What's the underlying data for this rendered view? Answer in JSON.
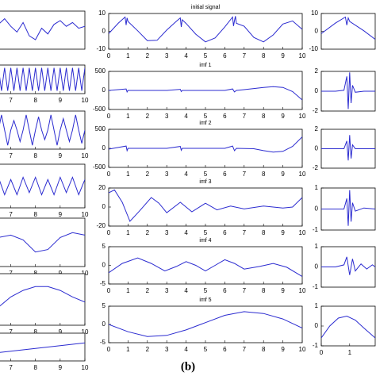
{
  "caption": "(b)",
  "chart_data": [
    {
      "type": "line",
      "title": "initial signal",
      "color": "#2b2bd0",
      "x": [
        0,
        0.5,
        0.85,
        0.9,
        0.95,
        1.0,
        1.5,
        2.0,
        2.5,
        3.0,
        3.5,
        3.7,
        3.75,
        3.8,
        4.0,
        4.5,
        5.0,
        5.5,
        6.0,
        6.4,
        6.45,
        6.5,
        6.55,
        6.6,
        7.0,
        7.5,
        8.0,
        8.5,
        9.0,
        9.5,
        10
      ],
      "values": [
        -1.3,
        4.6,
        8,
        3.5,
        7.5,
        5.5,
        0.3,
        -5.2,
        -5.0,
        0.7,
        5.7,
        7.5,
        2.5,
        6.5,
        4.4,
        -1.6,
        -5.9,
        -3.7,
        2.5,
        8,
        3,
        6.0,
        8.5,
        4.5,
        2.9,
        -3.4,
        -5.9,
        -2.0,
        4.1,
        5.8,
        1.1
      ],
      "xlim": [
        0,
        10
      ],
      "ylim": [
        -10,
        10
      ],
      "xticks": [
        0,
        1,
        2,
        3,
        4,
        5,
        6,
        7,
        8,
        9,
        10
      ],
      "yticks": [
        -10,
        0,
        10
      ]
    },
    {
      "type": "line",
      "title": "imf 1",
      "color": "#2b2bd0",
      "x": [
        0,
        0.9,
        0.95,
        1.0,
        2.0,
        3.0,
        3.7,
        3.75,
        3.8,
        5.0,
        6.0,
        6.4,
        6.5,
        6.6,
        7.0,
        7.5,
        8.0,
        8.5,
        9.0,
        9.5,
        10
      ],
      "values": [
        0,
        40,
        -40,
        0,
        0,
        0,
        30,
        -30,
        0,
        0,
        0,
        40,
        -40,
        0,
        20,
        50,
        80,
        100,
        80,
        -30,
        -250
      ],
      "xlim": [
        0,
        10
      ],
      "ylim": [
        -500,
        500
      ],
      "xticks": [
        0,
        1,
        2,
        3,
        4,
        5,
        6,
        7,
        8,
        9,
        10
      ],
      "yticks": [
        -500,
        0,
        500
      ]
    },
    {
      "type": "line",
      "title": "imf 2",
      "color": "#2b2bd0",
      "x": [
        0,
        0.9,
        0.95,
        1.0,
        2.0,
        3.0,
        3.7,
        3.75,
        3.8,
        5.0,
        6.0,
        6.4,
        6.5,
        6.6,
        7.5,
        8.0,
        8.5,
        9.0,
        9.5,
        10
      ],
      "values": [
        -20,
        60,
        -60,
        0,
        0,
        0,
        50,
        -50,
        0,
        0,
        0,
        60,
        -60,
        0,
        -10,
        -60,
        -100,
        -80,
        50,
        300
      ],
      "xlim": [
        0,
        10
      ],
      "ylim": [
        -500,
        500
      ],
      "xticks": [
        0,
        1,
        2,
        3,
        4,
        5,
        6,
        7,
        8,
        9,
        10
      ],
      "yticks": [
        -500,
        0,
        500
      ]
    },
    {
      "type": "line",
      "title": "imf 3",
      "color": "#2b2bd0",
      "x": [
        0,
        0.3,
        0.7,
        1.1,
        1.6,
        2.2,
        2.6,
        3.0,
        3.7,
        4.3,
        5.0,
        5.6,
        6.3,
        7.0,
        8.0,
        9.0,
        9.5,
        10
      ],
      "values": [
        15,
        18,
        5,
        -15,
        -4,
        10,
        4,
        -6,
        5,
        -5,
        4,
        -3,
        1,
        -2,
        1,
        -1,
        0,
        10
      ],
      "xlim": [
        0,
        10
      ],
      "ylim": [
        -20,
        20
      ],
      "xticks": [
        0,
        1,
        2,
        3,
        4,
        5,
        6,
        7,
        8,
        9,
        10
      ],
      "yticks": [
        -20,
        0,
        20
      ]
    },
    {
      "type": "line",
      "title": "imf 4",
      "color": "#2b2bd0",
      "x": [
        0,
        0.7,
        1.5,
        2.2,
        2.9,
        3.5,
        4.0,
        4.5,
        5.0,
        5.5,
        6.0,
        6.5,
        7.0,
        7.8,
        8.5,
        9.2,
        10
      ],
      "values": [
        -2,
        0.5,
        2,
        0.5,
        -1.5,
        -0.3,
        1,
        0,
        -1.5,
        0,
        1.5,
        0.5,
        -1,
        -0.3,
        0.5,
        -0.5,
        -3
      ],
      "xlim": [
        0,
        10
      ],
      "ylim": [
        -5,
        5
      ],
      "xticks": [
        0,
        1,
        2,
        3,
        4,
        5,
        6,
        7,
        8,
        9,
        10
      ],
      "yticks": [
        -5,
        0,
        5
      ]
    },
    {
      "type": "line",
      "title": "imf 5",
      "color": "#2b2bd0",
      "x": [
        0,
        1,
        2,
        3,
        4,
        5,
        6,
        7,
        8,
        9,
        10
      ],
      "values": [
        0,
        -2,
        -3.3,
        -3,
        -1.5,
        0.5,
        2.5,
        3.5,
        3,
        1.5,
        -1
      ],
      "xlim": [
        0,
        10
      ],
      "ylim": [
        -5,
        5
      ],
      "xticks": [
        0,
        1,
        2,
        3,
        4,
        5,
        6,
        7,
        8,
        9,
        10
      ],
      "yticks": [
        -5,
        0,
        5
      ]
    },
    {
      "type": "line",
      "color": "#2b2bd0",
      "x": [
        6.5,
        6.75,
        7,
        7.25,
        7.5,
        7.75,
        8,
        8.25,
        8.5,
        8.75,
        9,
        9.25,
        9.5,
        9.75,
        10
      ],
      "values": [
        0.3,
        0.6,
        0.2,
        -0.1,
        0.4,
        -0.3,
        -0.5,
        0.1,
        -0.2,
        0.3,
        0.5,
        0.2,
        0.4,
        0.1,
        0.2
      ],
      "xlim": [
        6.5,
        10
      ],
      "ylim": [
        -1,
        1
      ]
    },
    {
      "type": "line",
      "color": "#2b2bd0",
      "x": [
        6.5,
        6.625,
        6.75,
        6.875,
        7,
        7.125,
        7.25,
        7.375,
        7.5,
        7.625,
        7.75,
        7.875,
        8,
        8.125,
        8.25,
        8.375,
        8.5,
        8.625,
        8.75,
        8.875,
        9,
        9.125,
        9.25,
        9.375,
        9.5,
        9.625,
        9.75,
        9.875,
        10
      ],
      "values": [
        0.8,
        -0.8,
        0.8,
        -0.8,
        0.8,
        -0.8,
        0.8,
        -0.8,
        0.8,
        -0.8,
        0.8,
        -0.8,
        0.8,
        -0.8,
        0.8,
        -0.8,
        0.8,
        -0.8,
        0.8,
        -0.8,
        0.8,
        -0.8,
        0.8,
        -0.8,
        0.8,
        -0.8,
        0.8,
        -0.8,
        0.8
      ],
      "xlim": [
        6.5,
        10
      ],
      "ylim": [
        -1,
        1
      ],
      "xticks": [
        7,
        8,
        9,
        10
      ]
    },
    {
      "type": "line",
      "color": "#2b2bd0",
      "x": [
        6.5,
        6.625,
        6.75,
        6.875,
        7,
        7.125,
        7.25,
        7.375,
        7.5,
        7.625,
        7.75,
        7.875,
        8,
        8.125,
        8.25,
        8.375,
        8.5,
        8.625,
        8.75,
        8.875,
        9,
        9.125,
        9.25,
        9.375,
        9.5,
        9.625,
        9.75,
        9.875,
        10
      ],
      "values": [
        0,
        0.8,
        0,
        -0.8,
        0,
        0.5,
        0,
        -0.6,
        0,
        0.8,
        0,
        -0.8,
        0,
        0.7,
        0,
        -0.5,
        0,
        0.8,
        0,
        -0.8,
        0,
        0.6,
        0,
        -0.6,
        0,
        0.8,
        0,
        -0.7,
        0
      ],
      "xlim": [
        6.5,
        10
      ],
      "ylim": [
        -1,
        1
      ],
      "xticks": [
        7,
        8,
        9,
        10
      ]
    },
    {
      "type": "line",
      "color": "#2b2bd0",
      "x": [
        6.5,
        6.75,
        7,
        7.25,
        7.5,
        7.75,
        8,
        8.25,
        8.5,
        8.75,
        9,
        9.25,
        9.5,
        9.75,
        10
      ],
      "values": [
        0.4,
        -0.4,
        0.3,
        -0.4,
        0.4,
        -0.3,
        0.4,
        -0.4,
        0.3,
        -0.4,
        0.4,
        -0.3,
        0.4,
        -0.4,
        0.3
      ],
      "xlim": [
        6.5,
        10
      ],
      "ylim": [
        -1,
        1
      ],
      "xticks": [
        7,
        8,
        9,
        10
      ]
    },
    {
      "type": "line",
      "color": "#2b2bd0",
      "x": [
        6.5,
        7,
        7.5,
        8,
        8.5,
        9,
        9.5,
        10
      ],
      "values": [
        0.2,
        0.3,
        0.1,
        -0.4,
        -0.3,
        0.2,
        0.4,
        0.3
      ],
      "xlim": [
        6.5,
        10
      ],
      "ylim": [
        -1,
        1
      ],
      "xticks": [
        7,
        8,
        9,
        10
      ]
    },
    {
      "type": "line",
      "color": "#2b2bd0",
      "x": [
        6.5,
        7,
        7.5,
        8,
        8.5,
        9,
        9.5,
        10
      ],
      "values": [
        -0.3,
        0.1,
        0.35,
        0.5,
        0.5,
        0.35,
        0.1,
        -0.1
      ],
      "xlim": [
        6.5,
        10
      ],
      "ylim": [
        -1,
        1
      ],
      "xticks": [
        7,
        8,
        9,
        10
      ]
    },
    {
      "type": "line",
      "color": "#2b2bd0",
      "x": [
        6.5,
        7,
        7.5,
        8,
        8.5,
        9,
        9.5,
        10
      ],
      "values": [
        -0.4,
        -0.3,
        -0.2,
        -0.1,
        0,
        0.1,
        0.2,
        0.3
      ],
      "xlim": [
        6.5,
        10
      ],
      "ylim": [
        -1,
        1
      ],
      "xticks": [
        7,
        8,
        9,
        10
      ]
    },
    {
      "type": "line",
      "color": "#2b2bd0",
      "x": [
        0,
        0.5,
        0.85,
        0.9,
        0.95,
        1.0,
        1.5,
        1.9
      ],
      "values": [
        -1.3,
        4.6,
        8,
        3.5,
        7.5,
        5.5,
        0.3,
        -4.5
      ],
      "xlim": [
        0,
        1.9
      ],
      "ylim": [
        -10,
        10
      ],
      "yticks": [
        -10,
        0,
        10
      ]
    },
    {
      "type": "line",
      "color": "#2b2bd0",
      "x": [
        0,
        0.5,
        0.8,
        0.9,
        0.95,
        1.0,
        1.05,
        1.1,
        1.2,
        1.5,
        1.9
      ],
      "values": [
        0,
        0,
        0.1,
        1.5,
        -1.8,
        1.9,
        -1.2,
        0.6,
        -0.1,
        0,
        0
      ],
      "xlim": [
        0,
        1.9
      ],
      "ylim": [
        -2,
        2
      ],
      "yticks": [
        -2,
        0,
        2
      ]
    },
    {
      "type": "line",
      "color": "#2b2bd0",
      "x": [
        0,
        0.5,
        0.8,
        0.9,
        0.95,
        1.0,
        1.05,
        1.1,
        1.2,
        1.5,
        1.9
      ],
      "values": [
        0,
        0,
        0,
        0.8,
        -1.2,
        1.4,
        -1,
        0.4,
        0,
        0,
        0
      ],
      "xlim": [
        0,
        1.9
      ],
      "ylim": [
        -2,
        2
      ],
      "yticks": [
        -2,
        0,
        2
      ]
    },
    {
      "type": "line",
      "color": "#2b2bd0",
      "x": [
        0,
        0.5,
        0.8,
        0.9,
        0.95,
        1.0,
        1.05,
        1.1,
        1.2,
        1.5,
        1.9
      ],
      "values": [
        0,
        0,
        0,
        0.5,
        -0.8,
        0.9,
        -0.6,
        0.3,
        -0.1,
        0.05,
        0
      ],
      "xlim": [
        0,
        1.9
      ],
      "ylim": [
        -1,
        1
      ],
      "yticks": [
        -1,
        0,
        1
      ]
    },
    {
      "type": "line",
      "color": "#2b2bd0",
      "x": [
        0,
        0.5,
        0.8,
        0.9,
        1.0,
        1.1,
        1.2,
        1.4,
        1.6,
        1.8,
        1.9
      ],
      "values": [
        0,
        0,
        0.1,
        0.5,
        -0.4,
        0.4,
        -0.2,
        0.15,
        -0.1,
        0.1,
        0
      ],
      "xlim": [
        0,
        1.9
      ],
      "ylim": [
        -1,
        1
      ],
      "yticks": [
        -1,
        0,
        1
      ]
    },
    {
      "type": "line",
      "color": "#2b2bd0",
      "x": [
        0,
        0.3,
        0.6,
        0.9,
        1.2,
        1.5,
        1.9
      ],
      "values": [
        -0.6,
        0,
        0.4,
        0.5,
        0.3,
        -0.1,
        -0.6
      ],
      "xlim": [
        0,
        1.9
      ],
      "ylim": [
        -1,
        1
      ],
      "yticks": [
        -1,
        0,
        1
      ],
      "xticks": [
        0,
        1
      ]
    }
  ]
}
